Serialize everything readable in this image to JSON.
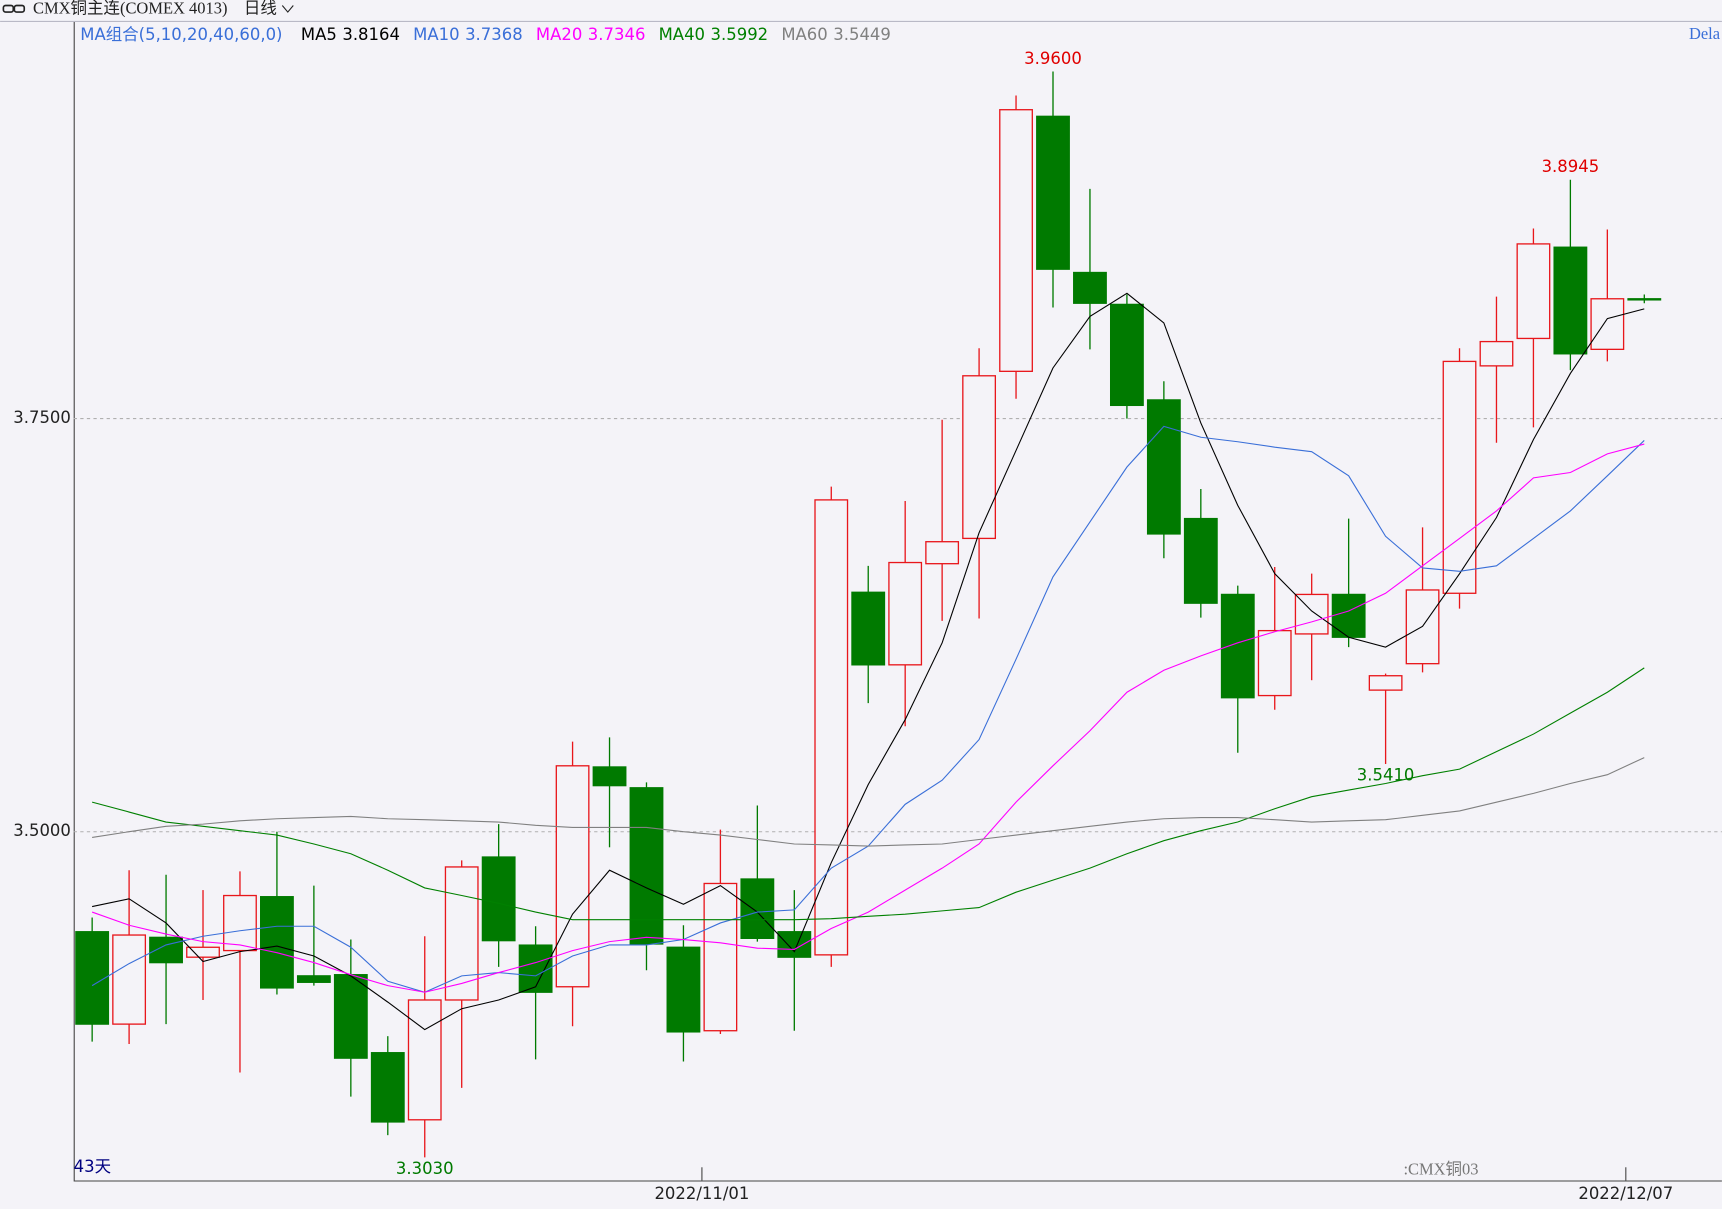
{
  "chart_data": {
    "type": "candlestick",
    "title": "CMX铜主连(COMEX 4013)",
    "period_label": "日线",
    "ma_label": "MA组合(5,10,20,40,60,0)",
    "corner_label": "Dela",
    "bar_count_label": "43天",
    "source_label": ":CMX铜03",
    "up_color": "#e8161b",
    "down_color": "#007a00",
    "ylim": [
      3.289,
      3.99
    ],
    "yticks": [
      {
        "value": 3.75,
        "label": "3.7500"
      },
      {
        "value": 3.5,
        "label": "3.5000"
      }
    ],
    "xlim": [
      -0.5,
      44.1
    ],
    "xticks": [
      {
        "value": 16.5,
        "label": "2022/11/01"
      },
      {
        "value": 41.5,
        "label": "2022/12/07"
      }
    ],
    "grid": true,
    "ohlc": [
      [
        3.4395,
        3.4481,
        3.373,
        3.3836
      ],
      [
        3.3836,
        3.4767,
        3.3716,
        3.4375
      ],
      [
        3.4361,
        3.474,
        3.3836,
        3.4208
      ],
      [
        3.4241,
        3.4647,
        3.3982,
        3.4301
      ],
      [
        3.4281,
        3.476,
        3.3543,
        3.4614
      ],
      [
        3.4607,
        3.5,
        3.4015,
        3.4055
      ],
      [
        3.4128,
        3.4674,
        3.4069,
        3.4089
      ],
      [
        3.4135,
        3.4348,
        3.3397,
        3.363
      ],
      [
        3.3663,
        3.3763,
        3.3164,
        3.3244
      ],
      [
        3.3257,
        3.4368,
        3.303,
        3.3982
      ],
      [
        3.3982,
        3.4827,
        3.345,
        3.4787
      ],
      [
        3.4847,
        3.5046,
        3.4182,
        3.4341
      ],
      [
        3.4314,
        3.4428,
        3.3623,
        3.4029
      ],
      [
        3.4062,
        3.5545,
        3.3823,
        3.5399
      ],
      [
        3.5392,
        3.5571,
        3.4906,
        3.5279
      ],
      [
        3.5266,
        3.5299,
        3.4162,
        3.4321
      ],
      [
        3.4301,
        3.4434,
        3.361,
        3.3789
      ],
      [
        3.3796,
        3.5013,
        3.3776,
        3.4687
      ],
      [
        3.4714,
        3.5159,
        3.4335,
        3.4355
      ],
      [
        3.4395,
        3.4647,
        3.3796,
        3.4241
      ],
      [
        3.4255,
        3.7088,
        3.4182,
        3.7008
      ],
      [
        3.6449,
        3.6609,
        3.5778,
        3.601
      ],
      [
        3.601,
        3.7001,
        3.5638,
        3.6629
      ],
      [
        3.6622,
        3.7493,
        3.6276,
        3.6755
      ],
      [
        3.6775,
        3.7926,
        3.629,
        3.7759
      ],
      [
        3.7786,
        3.9455,
        3.762,
        3.9369
      ],
      [
        3.9329,
        3.96,
        3.8172,
        3.8404
      ],
      [
        3.8384,
        3.889,
        3.7919,
        3.8198
      ],
      [
        3.8191,
        3.8251,
        3.75,
        3.758
      ],
      [
        3.7613,
        3.7726,
        3.6655,
        3.6802
      ],
      [
        3.6895,
        3.7074,
        3.6296,
        3.6383
      ],
      [
        3.6436,
        3.6489,
        3.5478,
        3.5811
      ],
      [
        3.5824,
        3.6602,
        3.5738,
        3.6217
      ],
      [
        3.6197,
        3.6562,
        3.5917,
        3.6436
      ],
      [
        3.6436,
        3.6895,
        3.6117,
        3.6177
      ],
      [
        3.5857,
        3.5957,
        3.541,
        3.5944
      ],
      [
        3.6017,
        3.6842,
        3.5964,
        3.6463
      ],
      [
        3.6443,
        3.7926,
        3.635,
        3.7846
      ],
      [
        3.7819,
        3.8238,
        3.7354,
        3.7966
      ],
      [
        3.7985,
        3.865,
        3.7447,
        3.8557
      ],
      [
        3.8537,
        3.8945,
        3.7793,
        3.7892
      ],
      [
        3.7919,
        3.8644,
        3.7846,
        3.8225
      ],
      [
        3.8225,
        3.8251,
        3.8198,
        3.8219
      ]
    ],
    "series": [
      {
        "name": "MA5",
        "color": "#000000",
        "values": [
          3.4547,
          3.4594,
          3.4448,
          3.4215,
          3.4275,
          3.4308,
          3.4248,
          3.4128,
          3.3969,
          3.3803,
          3.3929,
          3.3982,
          3.4062,
          3.4501,
          3.4767,
          3.466,
          3.4561,
          3.4674,
          3.4514,
          3.4275,
          3.4813,
          3.5286,
          3.5678,
          3.6143,
          3.6809,
          3.7307,
          3.7806,
          3.8118,
          3.8258,
          3.8079,
          3.7473,
          3.6975,
          3.6562,
          3.6336,
          3.6177,
          3.6117,
          3.6243,
          3.6562,
          3.6901,
          3.7374,
          3.7773,
          3.8105,
          3.8164
        ]
      },
      {
        "name": "MA10",
        "color": "#3a6fd8",
        "values": [
          3.4069,
          3.4202,
          3.4315,
          3.4368,
          3.4401,
          3.4428,
          3.4428,
          3.4301,
          3.4095,
          3.4029,
          3.4128,
          3.4148,
          3.4128,
          3.4248,
          3.4315,
          3.4315,
          3.4348,
          3.4448,
          3.4514,
          3.4527,
          3.478,
          3.4913,
          3.5166,
          3.5312,
          3.5558,
          3.6044,
          3.6542,
          3.6875,
          3.7207,
          3.7453,
          3.7387,
          3.736,
          3.7327,
          3.73,
          3.7154,
          3.6788,
          3.6596,
          3.6576,
          3.6609,
          3.6775,
          3.6941,
          3.7154,
          3.7368
        ]
      },
      {
        "name": "MA20",
        "color": "#ff00ff",
        "values": [
          3.4514,
          3.4434,
          3.4381,
          3.4335,
          3.4315,
          3.4268,
          3.4208,
          3.4135,
          3.4069,
          3.4029,
          3.4082,
          3.4148,
          3.4208,
          3.4281,
          3.4335,
          3.4361,
          3.4348,
          3.4328,
          3.4295,
          3.4288,
          3.4414,
          3.4514,
          3.4647,
          3.478,
          3.4926,
          3.5179,
          3.5399,
          3.5611,
          3.5844,
          3.5977,
          3.6064,
          3.6143,
          3.621,
          3.627,
          3.6336,
          3.6443,
          3.6609,
          3.6775,
          3.6941,
          3.7141,
          3.7174,
          3.7287,
          3.7346
        ]
      },
      {
        "name": "MA40",
        "color": "#008000",
        "values": [
          3.5179,
          3.5119,
          3.5059,
          3.5033,
          3.5006,
          3.498,
          3.4926,
          3.4867,
          3.4767,
          3.466,
          3.4614,
          3.4567,
          3.4514,
          3.4468,
          3.4468,
          3.4468,
          3.4468,
          3.4468,
          3.4468,
          3.4468,
          3.4474,
          3.4488,
          3.4501,
          3.4521,
          3.4541,
          3.4634,
          3.4707,
          3.478,
          3.4867,
          3.4946,
          3.5006,
          3.5059,
          3.5139,
          3.5212,
          3.5252,
          3.5292,
          3.5339,
          3.5379,
          3.5485,
          3.5591,
          3.5718,
          3.5844,
          3.5992
        ]
      },
      {
        "name": "MA60",
        "color": "#808080",
        "values": [
          3.4966,
          3.5,
          3.5033,
          3.5046,
          3.5066,
          3.5079,
          3.5086,
          3.5093,
          3.5079,
          3.5073,
          3.5066,
          3.5059,
          3.5039,
          3.5026,
          3.5026,
          3.5026,
          3.5,
          3.498,
          3.4953,
          3.4926,
          3.492,
          3.4913,
          3.492,
          3.4926,
          3.4953,
          3.498,
          3.5006,
          3.5033,
          3.5059,
          3.5079,
          3.5086,
          3.5086,
          3.5073,
          3.5059,
          3.5066,
          3.5073,
          3.5099,
          3.5126,
          3.5179,
          3.5232,
          3.5292,
          3.5345,
          3.5449
        ]
      }
    ],
    "annotations": [
      {
        "text": "3.9600",
        "value": 3.96
      },
      {
        "text": "3.8945",
        "value": 3.8945
      },
      {
        "text": "3.3030",
        "value": 3.303
      },
      {
        "text": "3.5410",
        "value": 3.541
      }
    ]
  }
}
